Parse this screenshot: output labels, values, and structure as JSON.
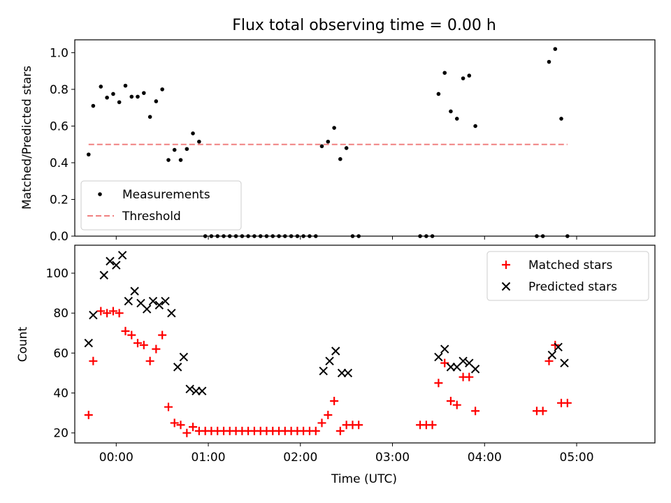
{
  "chart_data": [
    {
      "type": "scatter",
      "title": "Flux total observing time = 0.00 h",
      "xlabel": "",
      "ylabel": "Matched/Predicted stars",
      "xlim": [
        -0.45,
        5.85
      ],
      "ylim": [
        0.0,
        1.07
      ],
      "yticks": [
        "0.0",
        "0.2",
        "0.4",
        "0.6",
        "0.8",
        "1.0"
      ],
      "legend_position": "lower-left",
      "series": [
        {
          "name": "Measurements",
          "style": "dot",
          "color": "#000000",
          "points": [
            [
              -0.3,
              0.445
            ],
            [
              -0.25,
              0.71
            ],
            [
              -0.167,
              0.815
            ],
            [
              -0.1,
              0.755
            ],
            [
              -0.033,
              0.775
            ],
            [
              0.033,
              0.73
            ],
            [
              0.1,
              0.82
            ],
            [
              0.167,
              0.76
            ],
            [
              0.233,
              0.76
            ],
            [
              0.3,
              0.78
            ],
            [
              0.367,
              0.65
            ],
            [
              0.433,
              0.735
            ],
            [
              0.5,
              0.8
            ],
            [
              0.567,
              0.415
            ],
            [
              0.633,
              0.47
            ],
            [
              0.7,
              0.415
            ],
            [
              0.767,
              0.475
            ],
            [
              0.833,
              0.56
            ],
            [
              0.9,
              0.515
            ],
            [
              0.967,
              0.0
            ],
            [
              1.033,
              0.0
            ],
            [
              1.1,
              0.0
            ],
            [
              1.167,
              0.0
            ],
            [
              1.233,
              0.0
            ],
            [
              1.3,
              0.0
            ],
            [
              1.367,
              0.0
            ],
            [
              1.433,
              0.0
            ],
            [
              1.5,
              0.0
            ],
            [
              1.567,
              0.0
            ],
            [
              1.633,
              0.0
            ],
            [
              1.7,
              0.0
            ],
            [
              1.767,
              0.0
            ],
            [
              1.833,
              0.0
            ],
            [
              1.9,
              0.0
            ],
            [
              1.967,
              0.0
            ],
            [
              2.033,
              0.0
            ],
            [
              2.1,
              0.0
            ],
            [
              2.167,
              0.0
            ],
            [
              2.233,
              0.49
            ],
            [
              2.3,
              0.515
            ],
            [
              2.367,
              0.59
            ],
            [
              2.433,
              0.42
            ],
            [
              2.5,
              0.48
            ],
            [
              2.567,
              0.0
            ],
            [
              2.633,
              0.0
            ],
            [
              3.3,
              0.0
            ],
            [
              3.367,
              0.0
            ],
            [
              3.433,
              0.0
            ],
            [
              3.5,
              0.775
            ],
            [
              3.567,
              0.89
            ],
            [
              3.633,
              0.68
            ],
            [
              3.7,
              0.64
            ],
            [
              3.767,
              0.86
            ],
            [
              3.833,
              0.875
            ],
            [
              3.9,
              0.6
            ],
            [
              4.567,
              0.0
            ],
            [
              4.633,
              0.0
            ],
            [
              4.7,
              0.95
            ],
            [
              4.767,
              1.02
            ],
            [
              4.833,
              0.64
            ],
            [
              4.9,
              0.0
            ]
          ]
        },
        {
          "name": "Threshold",
          "style": "dashed-line",
          "color": "#f08080",
          "points": [
            [
              -0.3,
              0.5
            ],
            [
              4.9,
              0.5
            ]
          ]
        }
      ]
    },
    {
      "type": "scatter",
      "title": "",
      "xlabel": "Time (UTC)",
      "ylabel": "Count",
      "xlim": [
        -0.45,
        5.85
      ],
      "ylim": [
        15,
        114
      ],
      "yticks": [
        "20",
        "40",
        "60",
        "80",
        "100"
      ],
      "xticks": [
        "00:00",
        "01:00",
        "02:00",
        "03:00",
        "04:00",
        "05:00"
      ],
      "legend_position": "upper-right",
      "series": [
        {
          "name": "Matched stars",
          "style": "plus",
          "color": "#ff0000",
          "points": [
            [
              -0.3,
              29
            ],
            [
              -0.25,
              56
            ],
            [
              -0.167,
              81
            ],
            [
              -0.1,
              80
            ],
            [
              -0.033,
              81
            ],
            [
              0.033,
              80
            ],
            [
              0.1,
              71
            ],
            [
              0.167,
              69
            ],
            [
              0.233,
              65
            ],
            [
              0.3,
              64
            ],
            [
              0.367,
              56
            ],
            [
              0.433,
              62
            ],
            [
              0.5,
              69
            ],
            [
              0.567,
              33
            ],
            [
              0.633,
              25
            ],
            [
              0.7,
              24
            ],
            [
              0.767,
              20
            ],
            [
              0.833,
              23
            ],
            [
              0.9,
              21
            ],
            [
              0.967,
              21
            ],
            [
              1.033,
              21
            ],
            [
              1.1,
              21
            ],
            [
              1.167,
              21
            ],
            [
              1.233,
              21
            ],
            [
              1.3,
              21
            ],
            [
              1.367,
              21
            ],
            [
              1.433,
              21
            ],
            [
              1.5,
              21
            ],
            [
              1.567,
              21
            ],
            [
              1.633,
              21
            ],
            [
              1.7,
              21
            ],
            [
              1.767,
              21
            ],
            [
              1.833,
              21
            ],
            [
              1.9,
              21
            ],
            [
              1.967,
              21
            ],
            [
              2.033,
              21
            ],
            [
              2.1,
              21
            ],
            [
              2.167,
              21
            ],
            [
              2.233,
              25
            ],
            [
              2.3,
              29
            ],
            [
              2.367,
              36
            ],
            [
              2.433,
              21
            ],
            [
              2.5,
              24
            ],
            [
              2.567,
              24
            ],
            [
              2.633,
              24
            ],
            [
              3.3,
              24
            ],
            [
              3.367,
              24
            ],
            [
              3.433,
              24
            ],
            [
              3.5,
              45
            ],
            [
              3.567,
              55
            ],
            [
              3.633,
              36
            ],
            [
              3.7,
              34
            ],
            [
              3.767,
              48
            ],
            [
              3.833,
              48
            ],
            [
              3.9,
              31
            ],
            [
              4.567,
              31
            ],
            [
              4.633,
              31
            ],
            [
              4.7,
              56
            ],
            [
              4.767,
              64
            ],
            [
              4.833,
              35
            ],
            [
              4.9,
              35
            ]
          ]
        },
        {
          "name": "Predicted stars",
          "style": "x",
          "color": "#000000",
          "points": [
            [
              -0.3,
              65
            ],
            [
              -0.25,
              79
            ],
            [
              -0.133,
              99
            ],
            [
              -0.067,
              106
            ],
            [
              0.0,
              104
            ],
            [
              0.067,
              109
            ],
            [
              0.133,
              86
            ],
            [
              0.2,
              91
            ],
            [
              0.267,
              85
            ],
            [
              0.333,
              82
            ],
            [
              0.4,
              86
            ],
            [
              0.467,
              84
            ],
            [
              0.533,
              86
            ],
            [
              0.6,
              80
            ],
            [
              0.667,
              53
            ],
            [
              0.733,
              58
            ],
            [
              0.8,
              42
            ],
            [
              0.867,
              41
            ],
            [
              0.933,
              41
            ],
            [
              2.25,
              51
            ],
            [
              2.317,
              56
            ],
            [
              2.383,
              61
            ],
            [
              2.45,
              50
            ],
            [
              2.517,
              50
            ],
            [
              3.5,
              58
            ],
            [
              3.567,
              62
            ],
            [
              3.633,
              53
            ],
            [
              3.7,
              53
            ],
            [
              3.767,
              56
            ],
            [
              3.833,
              55
            ],
            [
              3.9,
              52
            ],
            [
              4.733,
              59
            ],
            [
              4.8,
              63
            ],
            [
              4.867,
              55
            ]
          ]
        }
      ]
    }
  ]
}
